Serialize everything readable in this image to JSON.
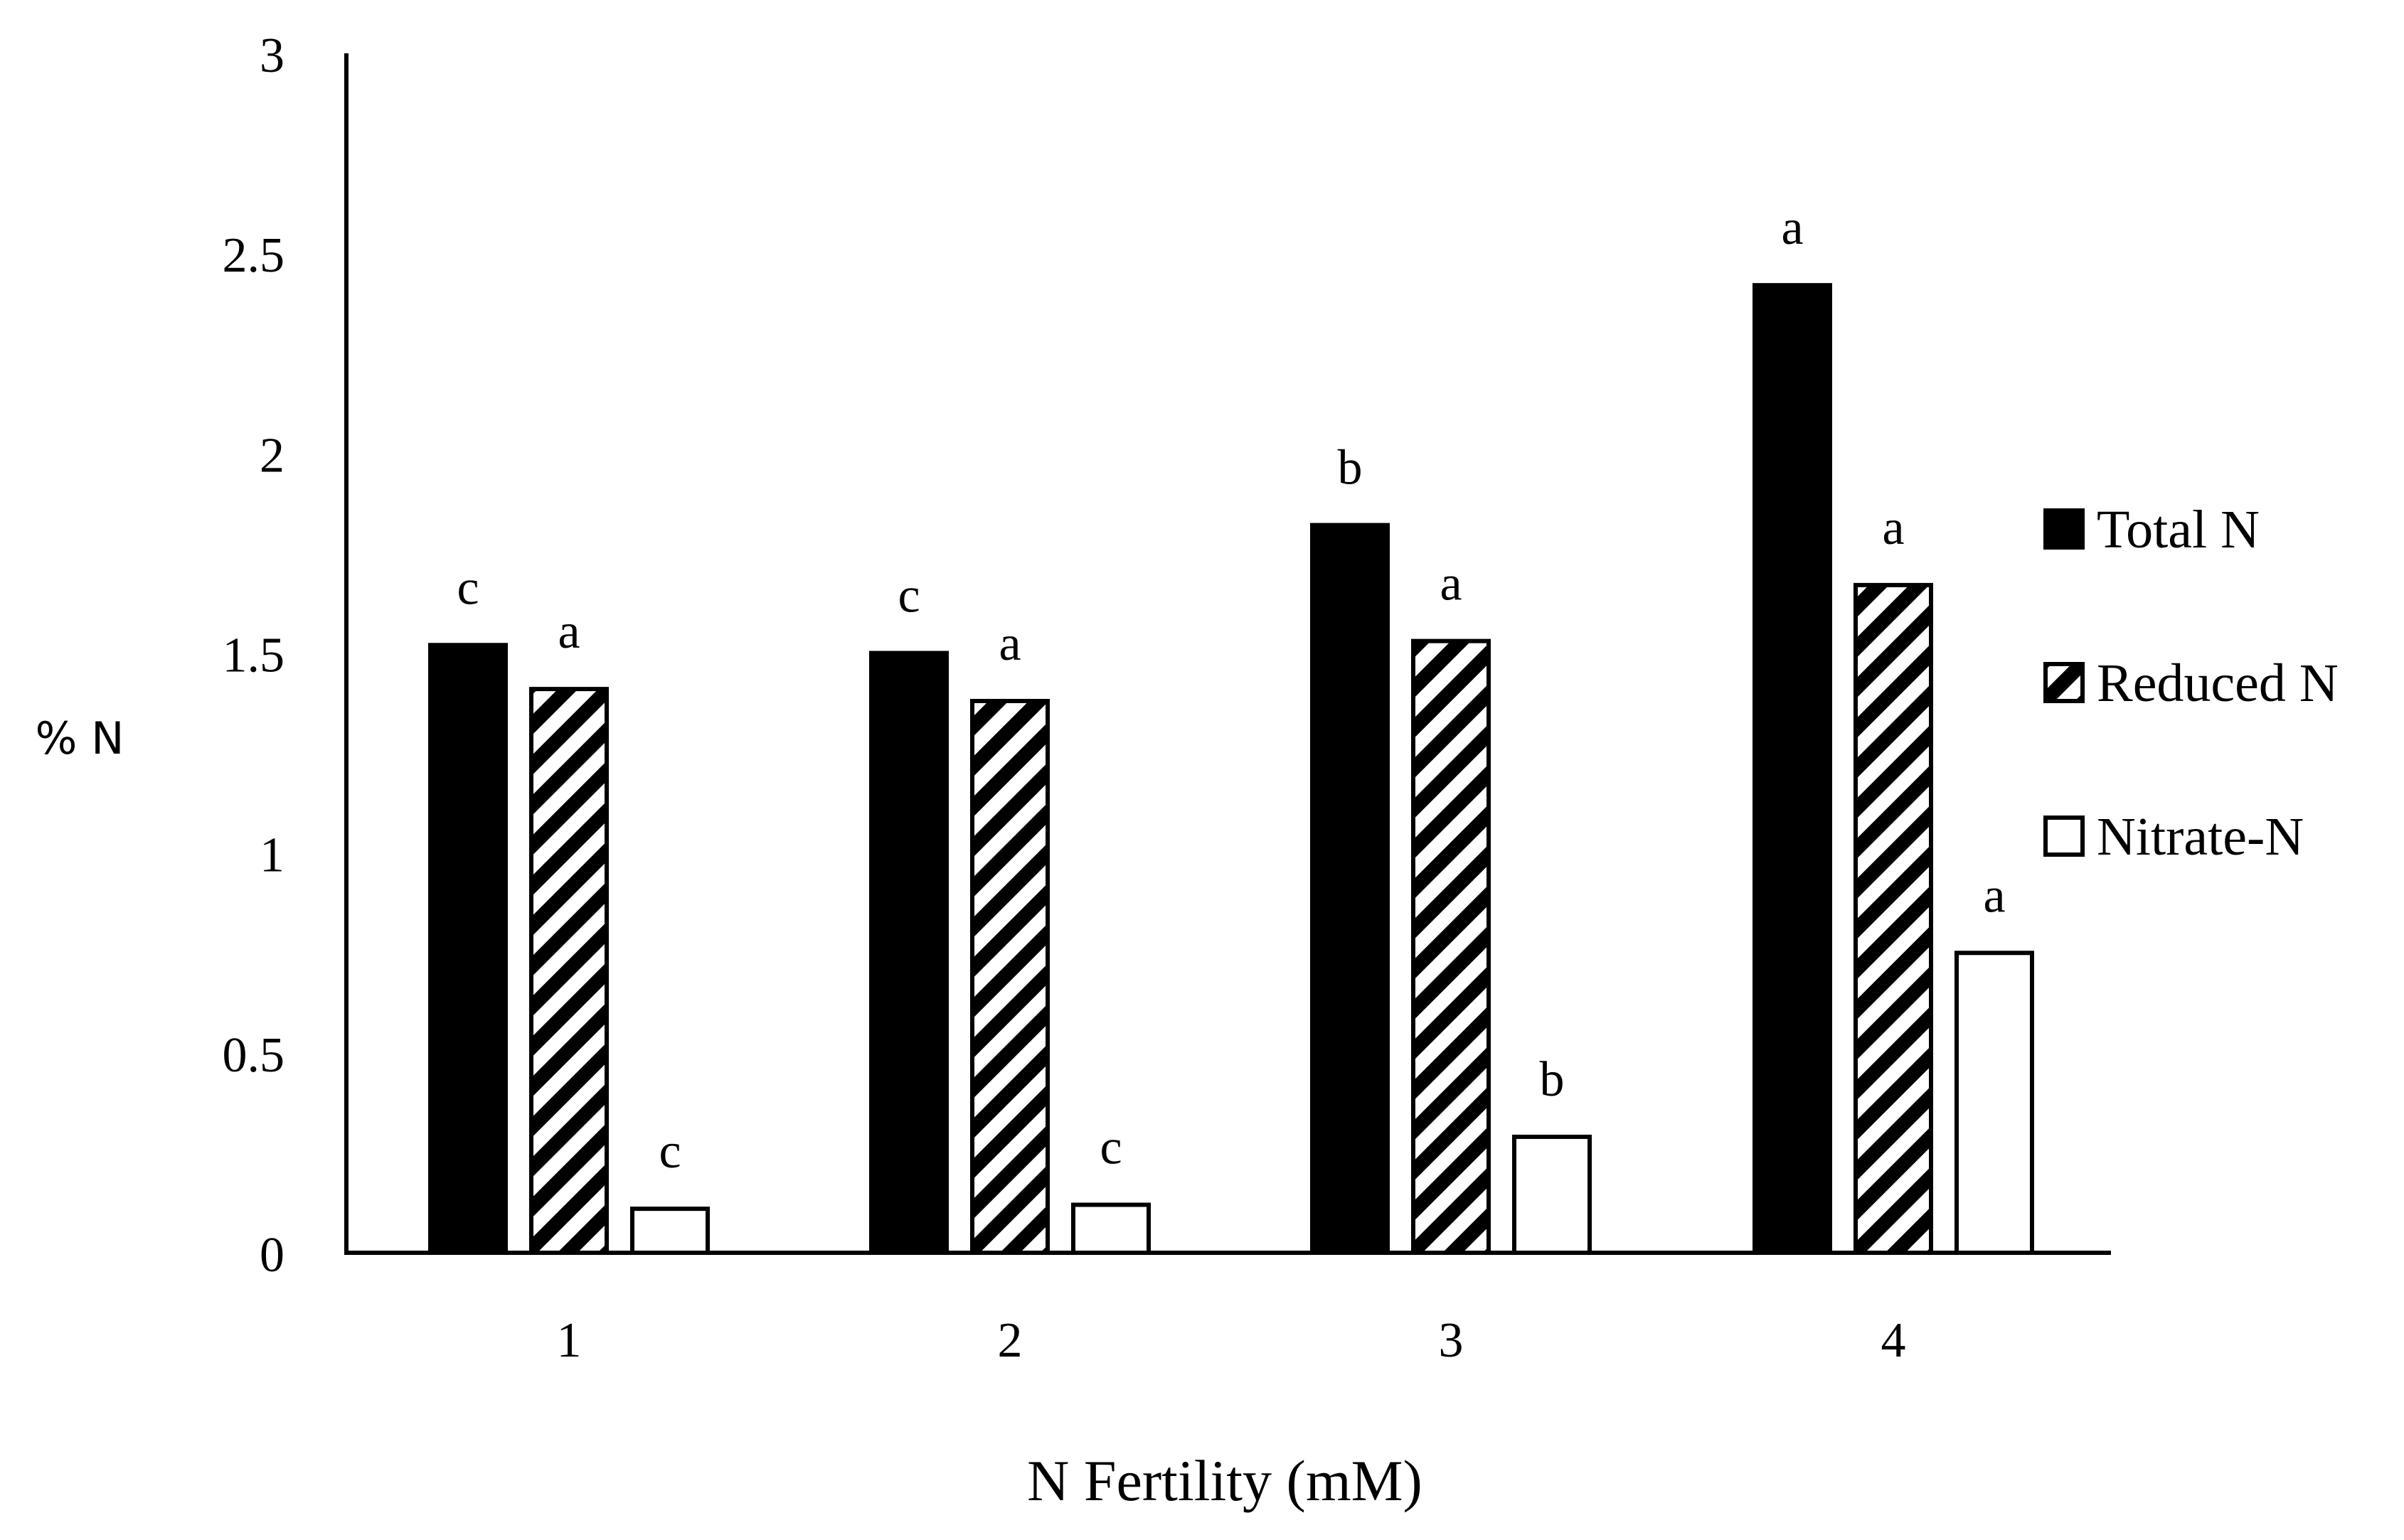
{
  "chart_data": {
    "type": "bar",
    "title": "",
    "xlabel": "N Fertility (mM)",
    "ylabel": "% N",
    "categories": [
      "1",
      "2",
      "3",
      "4"
    ],
    "ylim": [
      0,
      3
    ],
    "yticks": [
      "0",
      "0.5",
      "1",
      "1.5",
      "2",
      "2.5",
      "3"
    ],
    "grid": false,
    "legend_position": "right",
    "series": [
      {
        "name": "Total N",
        "fill": "solid",
        "color": "#000000",
        "values": [
          1.52,
          1.5,
          1.82,
          2.42
        ],
        "letters": [
          "c",
          "c",
          "b",
          "a"
        ]
      },
      {
        "name": "Reduced N",
        "fill": "hatched",
        "color": "#000000",
        "values": [
          1.41,
          1.38,
          1.53,
          1.67
        ],
        "letters": [
          "a",
          "a",
          "a",
          "a"
        ]
      },
      {
        "name": "Nitrate-N",
        "fill": "empty",
        "color": "#000000",
        "values": [
          0.11,
          0.12,
          0.29,
          0.75
        ],
        "letters": [
          "c",
          "c",
          "b",
          "a"
        ]
      }
    ]
  }
}
